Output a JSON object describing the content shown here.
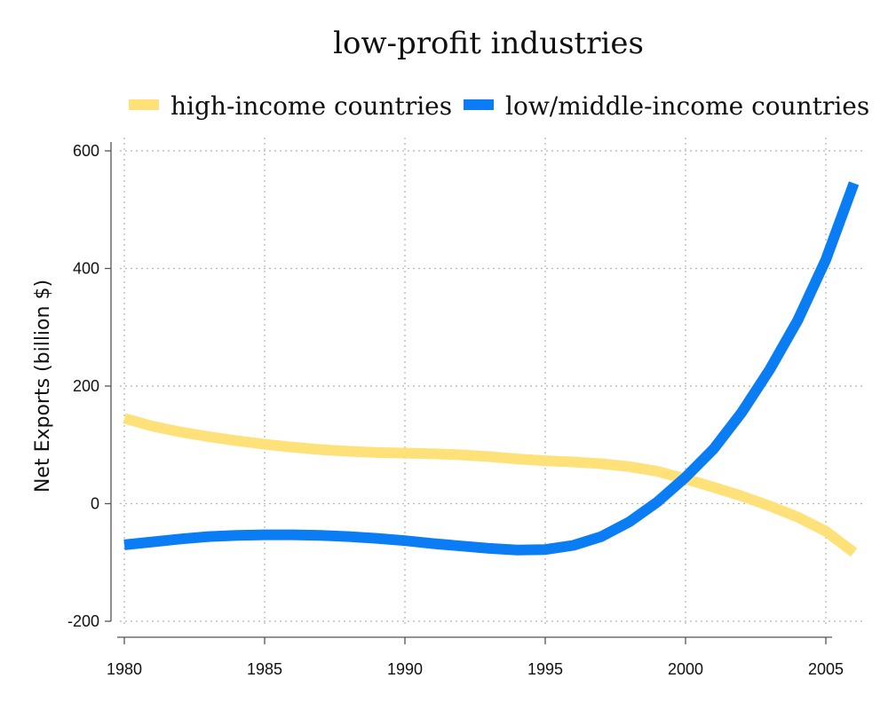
{
  "chart_data": {
    "type": "line",
    "title": "low-profit industries",
    "xlabel": "",
    "ylabel": "Net Exports (billion $)",
    "xlim": [
      1980,
      2006
    ],
    "ylim": [
      -200,
      600
    ],
    "x_ticks": [
      1980,
      1985,
      1990,
      1995,
      2000,
      2005
    ],
    "y_ticks": [
      -200,
      0,
      200,
      400,
      600
    ],
    "grid": true,
    "legend": "top",
    "x": [
      1980,
      1981,
      1982,
      1983,
      1984,
      1985,
      1986,
      1987,
      1988,
      1989,
      1990,
      1991,
      1992,
      1993,
      1994,
      1995,
      1996,
      1997,
      1998,
      1999,
      2000,
      2001,
      2002,
      2003,
      2004,
      2005,
      2006
    ],
    "series": [
      {
        "name": "high-income countries",
        "color": "#FFE17A",
        "values": [
          145,
          132,
          122,
          114,
          107,
          101,
          96,
          92,
          89,
          87,
          86,
          85,
          83,
          80,
          76,
          73,
          71,
          68,
          63,
          55,
          42,
          28,
          13,
          -4,
          -23,
          -47,
          -83
        ]
      },
      {
        "name": "low/middle-income countries",
        "color": "#0A7DF5",
        "values": [
          -70,
          -65,
          -60,
          -56,
          -54,
          -53,
          -53,
          -54,
          -56,
          -59,
          -63,
          -68,
          -72,
          -76,
          -79,
          -78,
          -71,
          -56,
          -31,
          3,
          45,
          93,
          155,
          228,
          312,
          415,
          545
        ]
      }
    ]
  }
}
